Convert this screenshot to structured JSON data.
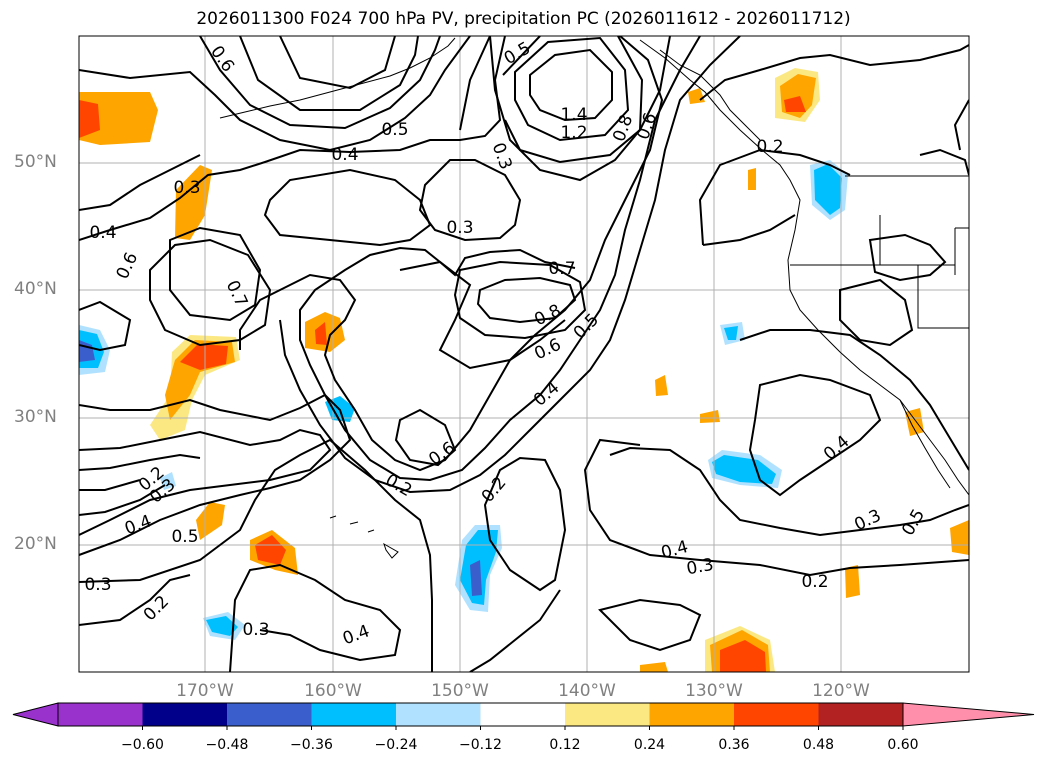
{
  "title": "2026011300 F024 700 hPa PV, precipitation PC (2026011612 - 2026011712)",
  "map": {
    "lat_labels": [
      "50°N",
      "40°N",
      "30°N",
      "20°N"
    ],
    "lon_labels": [
      "170°W",
      "160°W",
      "150°W",
      "140°W",
      "130°W",
      "120°W"
    ]
  },
  "contour_labels": [
    "0.6",
    "0.5",
    "0.4",
    "0.3",
    "0.5",
    "1.4",
    "1.2",
    "0.8",
    "0.6",
    "0.2",
    "0.3",
    "0.3",
    "0.4",
    "0.6",
    "0.7",
    "0.7",
    "0.8",
    "0.6",
    "0.5",
    "0.4",
    "0.6",
    "0.2",
    "0.2",
    "0.4",
    "0.3",
    "0.2",
    "0.4",
    "0.3",
    "0.5",
    "0.3",
    "0.4",
    "0.2",
    "0.3",
    "0.4",
    "0.5",
    "0.2",
    "0.3"
  ],
  "colorbar": {
    "ticks": [
      "−0.60",
      "−0.48",
      "−0.36",
      "−0.24",
      "−0.12",
      "0.12",
      "0.24",
      "0.36",
      "0.48",
      "0.60"
    ],
    "colors": [
      "#9932cc",
      "#00008b",
      "#3a5fcd",
      "#00bfff",
      "#b0e2ff",
      "#ffffff",
      "#fce883",
      "#ffa500",
      "#ff4500",
      "#b22222",
      "#ff8fab"
    ]
  }
}
